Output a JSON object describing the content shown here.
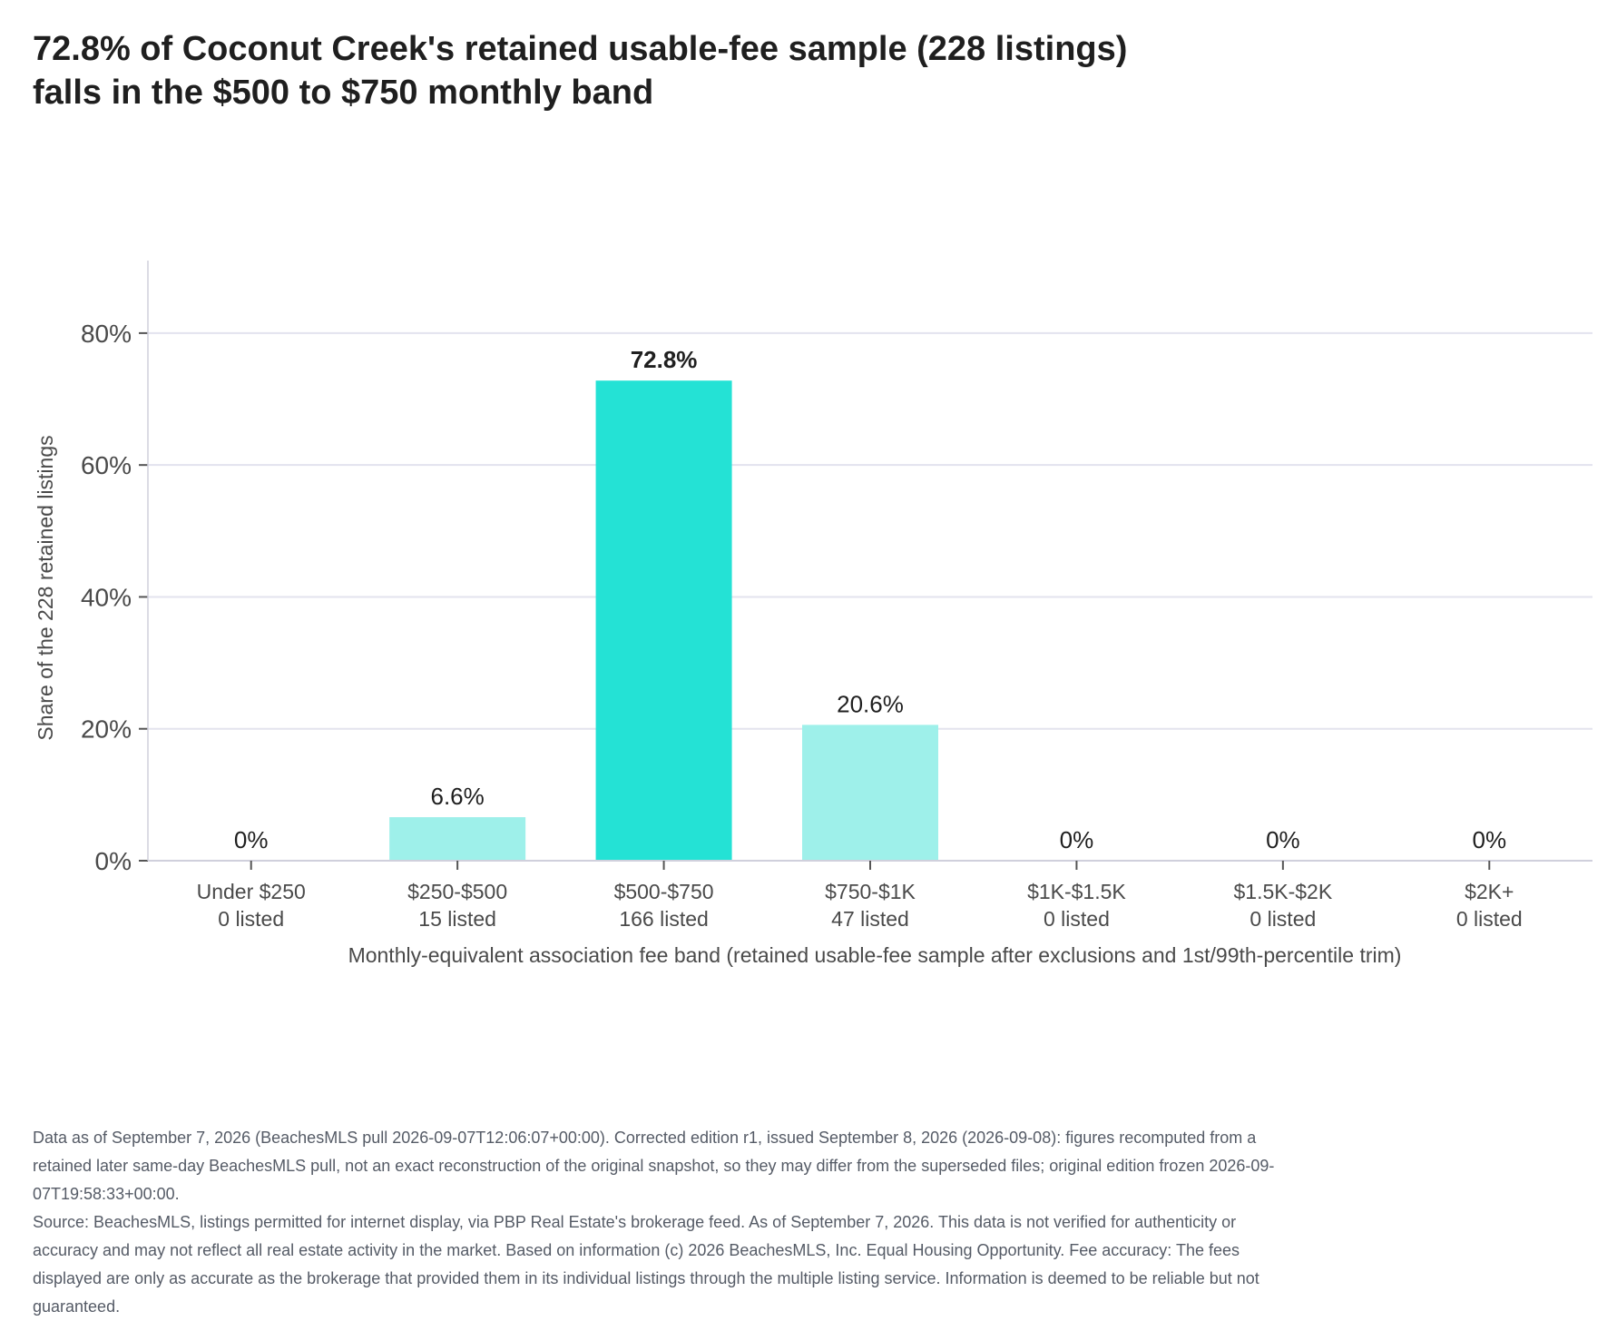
{
  "title_lines": [
    "72.8% of Coconut Creek's retained usable-fee sample (228 listings)",
    "falls in the $500 to $750 monthly band"
  ],
  "chart_data": {
    "type": "bar",
    "categories": [
      "Under $250",
      "$250-$500",
      "$500-$750",
      "$750-$1K",
      "$1K-$1.5K",
      "$1.5K-$2K",
      "$2K+"
    ],
    "counts_labels": [
      "0 listed",
      "15 listed",
      "166 listed",
      "47 listed",
      "0 listed",
      "0 listed",
      "0 listed"
    ],
    "values": [
      0,
      6.6,
      72.8,
      20.6,
      0,
      0,
      0
    ],
    "value_labels": [
      "0%",
      "6.6%",
      "72.8%",
      "20.6%",
      "0%",
      "0%",
      "0%"
    ],
    "highlight_index": 2,
    "xlabel": "Monthly-equivalent association fee band (retained usable-fee sample after exclusions and 1st/99th-percentile trim)",
    "ylabel": "Share of the 228 retained listings",
    "yticks": [
      0,
      20,
      40,
      60,
      80
    ],
    "ytick_labels": [
      "0%",
      "20%",
      "40%",
      "60%",
      "80%"
    ],
    "ylim": [
      0,
      91
    ],
    "grid": true,
    "colors": {
      "highlight": "#24e2d5",
      "base": "#9ef0ea",
      "grid": "#e3e3ee",
      "axis": "#d0d0dc"
    }
  },
  "notes": [
    "Data as of September 7, 2026 (BeachesMLS pull 2026-09-07T12:06:07+00:00). Corrected edition r1, issued September 8, 2026 (2026-09-08): figures recomputed from a retained later same-day BeachesMLS pull, not an exact reconstruction of the original snapshot, so they may differ from the superseded files; original edition frozen 2026-09-07T19:58:33+00:00.",
    "Source: BeachesMLS, listings permitted for internet display, via PBP Real Estate's brokerage feed. As of September 7, 2026. This data is not verified for authenticity or accuracy and may not reflect all real estate activity in the market. Based on information (c) 2026 BeachesMLS, Inc. Equal Housing Opportunity. Fee accuracy: The fees displayed are only as accurate as the brokerage that provided them in its individual listings through the multiple listing service. Information is deemed to be reliable but not guaranteed."
  ]
}
